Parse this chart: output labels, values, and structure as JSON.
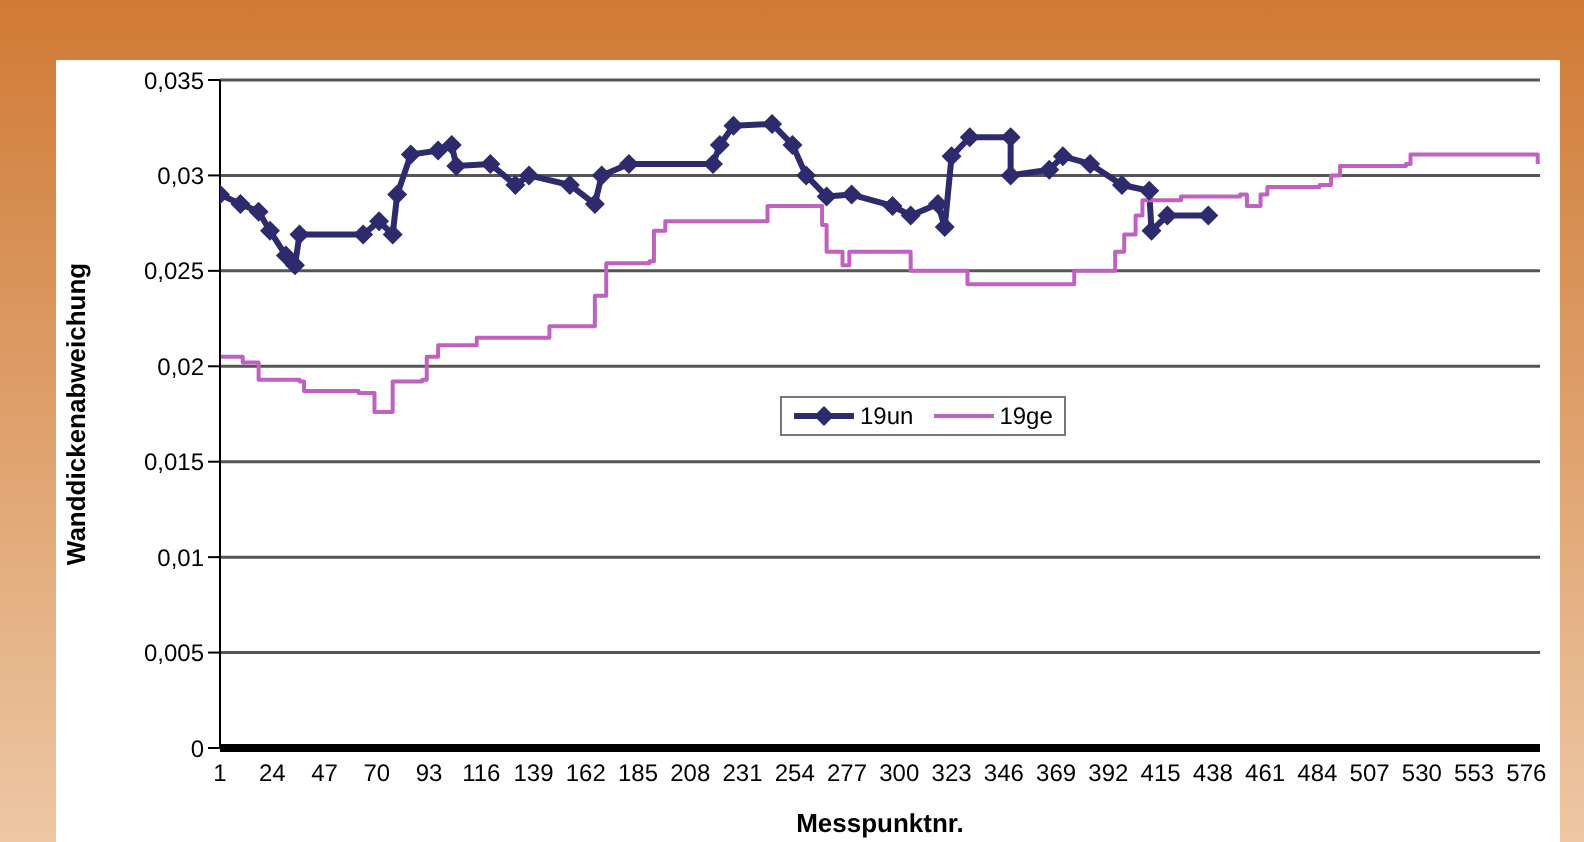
{
  "chart_data": {
    "type": "line",
    "xlabel": "Messpunktnr.",
    "ylabel": "Wanddickenabweichung",
    "xlim": [
      1,
      582
    ],
    "xticks": [
      1,
      24,
      47,
      70,
      93,
      116,
      139,
      162,
      185,
      208,
      231,
      254,
      277,
      300,
      323,
      346,
      369,
      392,
      415,
      438,
      461,
      484,
      507,
      530,
      553,
      576
    ],
    "ylim": [
      0,
      0.035
    ],
    "yticks": [
      {
        "value": 0,
        "label": "0"
      },
      {
        "value": 0.005,
        "label": "0,005"
      },
      {
        "value": 0.01,
        "label": "0,01"
      },
      {
        "value": 0.015,
        "label": "0,015"
      },
      {
        "value": 0.02,
        "label": "0,02"
      },
      {
        "value": 0.025,
        "label": "0,025"
      },
      {
        "value": 0.03,
        "label": "0,03"
      },
      {
        "value": 0.035,
        "label": "0,035"
      }
    ],
    "grid": "y",
    "legend": "center",
    "series": [
      {
        "name": "19un",
        "type": "line",
        "color": "#2e2a6e",
        "marker": "diamond",
        "x": [
          1,
          10,
          18,
          23,
          30,
          34,
          36,
          64,
          71,
          77,
          79,
          85,
          97,
          103,
          105,
          120,
          131,
          137,
          155,
          166,
          169,
          181,
          218,
          221,
          227,
          244,
          253,
          259,
          268,
          279,
          297,
          305,
          317,
          320,
          323,
          331,
          349,
          349,
          366,
          372,
          384,
          398,
          410,
          411,
          418,
          436
        ],
        "values": [
          0.029,
          0.0285,
          0.0281,
          0.0271,
          0.0258,
          0.0253,
          0.0269,
          0.0269,
          0.0276,
          0.0269,
          0.029,
          0.0311,
          0.0313,
          0.0316,
          0.0305,
          0.0306,
          0.0295,
          0.03,
          0.0295,
          0.0285,
          0.03,
          0.0306,
          0.0306,
          0.0316,
          0.0326,
          0.0327,
          0.0316,
          0.03,
          0.0289,
          0.029,
          0.0284,
          0.0279,
          0.0285,
          0.0273,
          0.031,
          0.032,
          0.032,
          0.03,
          0.0303,
          0.031,
          0.0306,
          0.0295,
          0.0292,
          0.0271,
          0.0279,
          0.0279
        ]
      },
      {
        "name": "19ge",
        "type": "step",
        "color": "#c060c0",
        "marker": "none",
        "x": [
          1,
          11,
          18,
          36,
          38,
          62,
          69,
          77,
          90,
          92,
          97,
          114,
          143,
          146,
          162,
          166,
          171,
          190,
          192,
          197,
          238,
          242,
          259,
          266,
          268,
          275,
          278,
          299,
          305,
          329,
          330,
          375,
          377,
          392,
          395,
          399,
          404,
          407,
          424,
          450,
          453,
          459,
          462,
          485,
          490,
          494,
          523,
          525,
          578,
          581
        ],
        "values": [
          0.0205,
          0.0202,
          0.0193,
          0.0192,
          0.0187,
          0.0186,
          0.0176,
          0.0192,
          0.0193,
          0.0205,
          0.0211,
          0.0215,
          0.0215,
          0.0221,
          0.0221,
          0.0237,
          0.0254,
          0.0255,
          0.0271,
          0.0276,
          0.0276,
          0.0284,
          0.0284,
          0.0274,
          0.026,
          0.0253,
          0.026,
          0.026,
          0.025,
          0.025,
          0.0243,
          0.0243,
          0.025,
          0.025,
          0.026,
          0.0269,
          0.0279,
          0.0287,
          0.0289,
          0.029,
          0.0284,
          0.029,
          0.0294,
          0.0295,
          0.03,
          0.0305,
          0.0306,
          0.0311,
          0.0311,
          0.0306
        ]
      }
    ]
  }
}
